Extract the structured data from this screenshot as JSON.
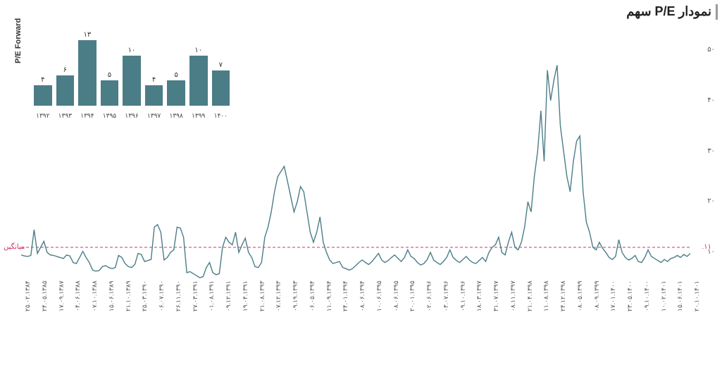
{
  "title": "نمودار P/E سهم",
  "main_chart": {
    "type": "line",
    "line_color": "#4b7d87",
    "line_width": 1.4,
    "background_color": "#ffffff",
    "ylim": [
      0,
      55
    ],
    "y_ticks": [
      10,
      20,
      30,
      40,
      50
    ],
    "y_tick_labels": [
      "۱۰",
      "۲۰",
      "۳۰",
      "۴۰",
      "۵۰"
    ],
    "average_line": {
      "value": 11,
      "label": "میانگین",
      "value_label": "۱۱.",
      "color": "#d3326b",
      "dash": "4,3"
    },
    "x_tick_labels": [
      "۲۵.۰۲.۱۳۸۴",
      "۲۴.۰۵.۱۳۸۵",
      "۱۷.۰۹.۱۳۸۷",
      "۰۴.۰۶.۱۳۸۸",
      "۰۷.۱۰.۱۳۸۸",
      "۱۵.۰۶.۱۳۸۹",
      "۲۱.۱۰.۱۳۸۹",
      "۲۵.۰۳.۱۳۹۰",
      "۰۶.۰۷.۱۳۹۰",
      "۲۶.۱۱.۱۳۹۰",
      "۲۷.۰۳.۱۳۹۱",
      "۰۱.۰۸.۱۳۹۱",
      "۰۹.۱۲.۱۳۹۱",
      "۱۹.۰۴.۱۳۹۱",
      "۲۱.۰۸.۱۳۹۳",
      "۰۷.۱۲.۱۳۹۳",
      "۰۹.۱۹.۱۳۹۳",
      "۰۶.۰۵.۱۳۹۴",
      "۱۱.۰۹.۱۳۹۴",
      "۲۴.۰۱.۱۳۹۴",
      "۰۸.۰۶.۱۳۹۴",
      "۱۰.۰۶.۱۳۹۵",
      "۰۸.۰۶.۱۳۹۵",
      "۲۰.۰۱.۱۳۹۵",
      "۰۲.۰۶.۱۳۹۶",
      "۰۳.۰۷.۱۳۹۶",
      "۰۹.۱۰.۱۳۹۶",
      "۱۸.۰۳.۱۳۹۷",
      "۳۱.۰۷.۱۳۹۷",
      "۰۸.۱۱.۱۳۹۷",
      "۲۱.۰۴.۱۳۹۸",
      "۱۱.۰۸.۱۳۹۸",
      "۲۴.۱۲.۱۳۹۸",
      "۰۸.۰۵.۱۳۹۹",
      "۰۸.۰۹.۱۳۹۹",
      "۱۷.۰۱.۱۴۰۰",
      "۲۳.۰۵.۱۴۰۰",
      "۰۹.۱۰.۱۴۰۰",
      "۱۰.۰۲.۱۴۰۱",
      "۱۵.۰۶.۱۴۰۱",
      "۲۰.۱۰.۱۴۰۱"
    ],
    "series": [
      9.5,
      9.3,
      9.2,
      9.4,
      14.5,
      9.8,
      11.0,
      12.2,
      10.0,
      9.5,
      9.4,
      9.2,
      9.0,
      8.8,
      9.5,
      9.3,
      8.0,
      7.8,
      9.0,
      10.2,
      9.0,
      8.0,
      6.5,
      6.3,
      6.4,
      7.2,
      7.4,
      7.0,
      6.8,
      7.0,
      9.4,
      9.0,
      7.8,
      7.2,
      7.0,
      7.6,
      9.8,
      9.6,
      8.2,
      8.4,
      8.6,
      15.0,
      15.5,
      14.0,
      8.5,
      9.0,
      10.0,
      10.5,
      15.0,
      14.8,
      13.0,
      6.0,
      6.2,
      5.8,
      5.4,
      5.0,
      5.2,
      7.0,
      8.0,
      6.0,
      5.6,
      5.8,
      11.0,
      13.0,
      12.0,
      11.5,
      14.0,
      10.0,
      11.5,
      12.8,
      10.0,
      9.0,
      7.2,
      7.0,
      8.0,
      13.0,
      15.0,
      18.0,
      22.0,
      25.0,
      26.0,
      27.0,
      24.0,
      21.0,
      18.0,
      20.0,
      23.0,
      22.0,
      18.0,
      14.0,
      12.0,
      14.0,
      17.0,
      12.0,
      10.0,
      8.5,
      7.8,
      8.0,
      8.2,
      7.0,
      6.8,
      6.5,
      6.8,
      7.4,
      8.0,
      8.5,
      8.0,
      7.6,
      8.2,
      9.0,
      9.8,
      8.5,
      8.0,
      8.4,
      9.0,
      9.5,
      8.8,
      8.2,
      9.0,
      10.5,
      9.2,
      8.8,
      8.0,
      7.5,
      7.8,
      8.6,
      10.0,
      8.5,
      8.0,
      7.6,
      8.2,
      9.0,
      10.5,
      9.0,
      8.4,
      8.0,
      8.6,
      9.2,
      8.5,
      8.0,
      7.8,
      8.4,
      9.0,
      8.2,
      10.0,
      11.0,
      11.5,
      13.0,
      10.0,
      9.5,
      12.0,
      14.0,
      11.0,
      10.5,
      12.0,
      15.0,
      20.0,
      18.0,
      25.0,
      30.0,
      38.0,
      28.0,
      46.0,
      40.0,
      44.0,
      47.0,
      35.0,
      30.0,
      25.0,
      22.0,
      28.0,
      32.0,
      33.0,
      22.0,
      16.0,
      14.0,
      11.0,
      10.5,
      12.0,
      10.8,
      10.0,
      9.0,
      8.6,
      9.2,
      12.5,
      10.0,
      9.0,
      8.5,
      8.8,
      9.4,
      8.2,
      8.0,
      9.0,
      10.5,
      9.2,
      8.8,
      8.4,
      8.0,
      8.6,
      8.2,
      8.8,
      9.0,
      9.4,
      9.0,
      9.6,
      9.2,
      9.8
    ]
  },
  "inset_chart": {
    "type": "bar",
    "y_label": "P/E Forward",
    "bar_color": "#4b7d87",
    "ylim_max": 14,
    "categories": [
      "۱۳۹۲",
      "۱۳۹۳",
      "۱۳۹۴",
      "۱۳۹۵",
      "۱۳۹۶",
      "۱۳۹۷",
      "۱۳۹۸",
      "۱۳۹۹",
      "۱۴۰۰"
    ],
    "values": [
      4,
      6,
      13,
      5,
      10,
      4,
      5,
      10,
      7
    ],
    "value_labels": [
      "۴",
      "۶",
      "۱۳",
      "۵",
      "۱۰",
      "۴",
      "۵",
      "۱۰",
      "۷"
    ],
    "title_fontsize": 11,
    "label_fontsize": 9
  },
  "colors": {
    "accent": "#4b7d87",
    "avg": "#d3326b",
    "text": "#333333"
  }
}
